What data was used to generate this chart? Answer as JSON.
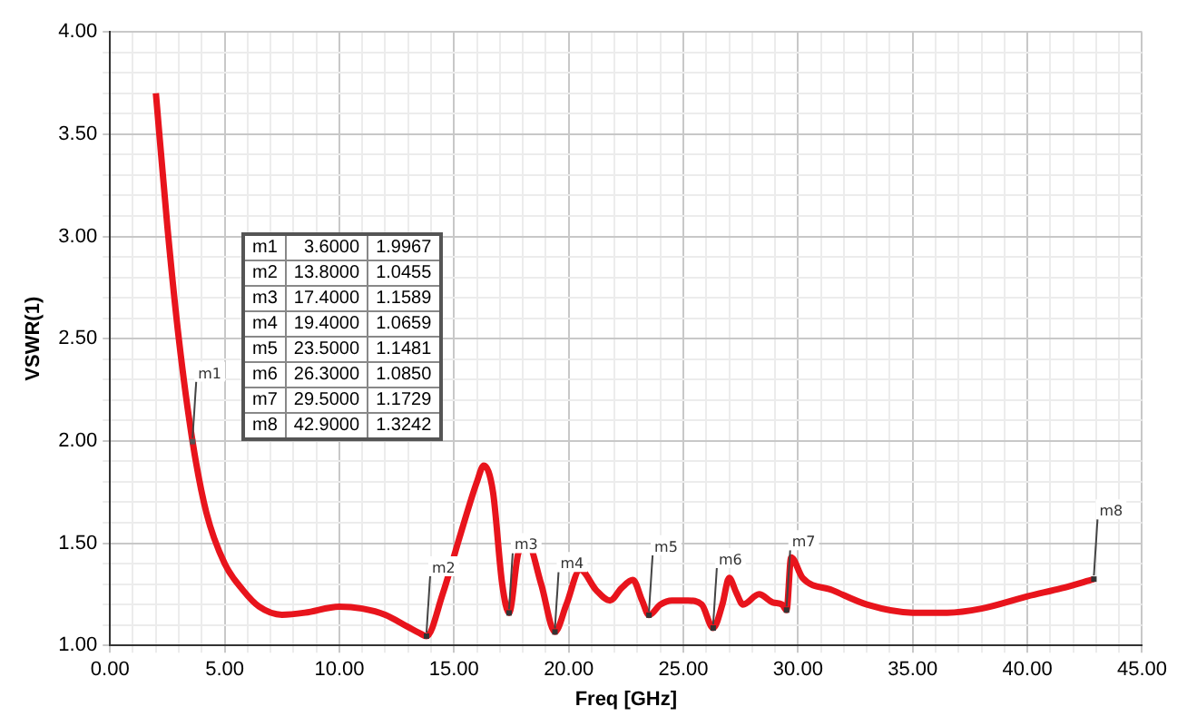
{
  "chart_data": {
    "type": "line",
    "xlabel": "Freq [GHz]",
    "ylabel": "VSWR(1)",
    "series": [
      {
        "color": "#e8141c",
        "x": [
          2,
          2.5,
          3,
          3.6,
          4.2,
          5,
          5.8,
          6.5,
          7.5,
          8.5,
          10,
          11,
          12,
          13,
          13.5,
          13.8,
          14.5,
          15.3,
          16,
          16.3,
          16.7,
          17.1,
          17.4,
          17.8,
          18.2,
          18.8,
          19.4,
          19.9,
          20.5,
          21.2,
          21.8,
          22.3,
          22.8,
          23.2,
          23.5,
          24,
          24.5,
          25.2,
          25.8,
          26.3,
          26.7,
          27,
          27.3,
          27.6,
          28.3,
          28.9,
          29.3,
          29.5,
          29.7,
          30.2,
          31.5,
          33,
          35,
          36.5,
          38,
          40,
          41.5,
          42.9
        ],
        "values": [
          3.7,
          3.05,
          2.5,
          1.9967,
          1.65,
          1.4,
          1.27,
          1.19,
          1.15,
          1.16,
          1.19,
          1.18,
          1.15,
          1.09,
          1.06,
          1.0455,
          1.25,
          1.55,
          1.8,
          1.88,
          1.75,
          1.3,
          1.1589,
          1.45,
          1.5,
          1.3,
          1.0659,
          1.2,
          1.37,
          1.27,
          1.22,
          1.28,
          1.32,
          1.22,
          1.1481,
          1.2,
          1.22,
          1.22,
          1.2,
          1.085,
          1.2,
          1.33,
          1.26,
          1.2,
          1.25,
          1.21,
          1.2,
          1.1729,
          1.43,
          1.33,
          1.27,
          1.2,
          1.16,
          1.16,
          1.18,
          1.24,
          1.28,
          1.3242
        ]
      }
    ],
    "xlim": [
      0,
      45
    ],
    "xticks": [
      {
        "value": 0,
        "label": "0.00"
      },
      {
        "value": 5,
        "label": "5.00"
      },
      {
        "value": 10,
        "label": "10.00"
      },
      {
        "value": 15,
        "label": "15.00"
      },
      {
        "value": 20,
        "label": "20.00"
      },
      {
        "value": 25,
        "label": "25.00"
      },
      {
        "value": 30,
        "label": "30.00"
      },
      {
        "value": 35,
        "label": "35.00"
      },
      {
        "value": 40,
        "label": "40.00"
      },
      {
        "value": 45,
        "label": "45.00"
      }
    ],
    "ylim": [
      1,
      4
    ],
    "yticks": [
      {
        "value": 1,
        "label": "1.00"
      },
      {
        "value": 1.5,
        "label": "1.50"
      },
      {
        "value": 2,
        "label": "2.00"
      },
      {
        "value": 2.5,
        "label": "2.50"
      },
      {
        "value": 3,
        "label": "3.00"
      },
      {
        "value": 3.5,
        "label": "3.50"
      },
      {
        "value": 4,
        "label": "4.00"
      }
    ],
    "grid": true,
    "legend": false,
    "marker": "none",
    "line_style": "solid",
    "annotations": [
      {
        "text": "m1",
        "x": 3.6,
        "y": 1.9967
      },
      {
        "text": "m2",
        "x": 13.8,
        "y": 1.0455
      },
      {
        "text": "m3",
        "x": 17.4,
        "y": 1.1589
      },
      {
        "text": "m4",
        "x": 19.4,
        "y": 1.0659
      },
      {
        "text": "m5",
        "x": 23.5,
        "y": 1.1481
      },
      {
        "text": "m6",
        "x": 26.3,
        "y": 1.085
      },
      {
        "text": "m7",
        "x": 29.5,
        "y": 1.1729
      },
      {
        "text": "m8",
        "x": 42.9,
        "y": 1.3242
      },
      "m1  3.6000  1.9967",
      "m2  13.8000  1.0455",
      "m3  17.4000  1.1589",
      "m4  19.4000  1.0659",
      "m5  23.5000  1.1481",
      "m6  26.3000  1.0850",
      "m7  29.5000  1.1729",
      "m8  42.9000  1.3242"
    ]
  }
}
